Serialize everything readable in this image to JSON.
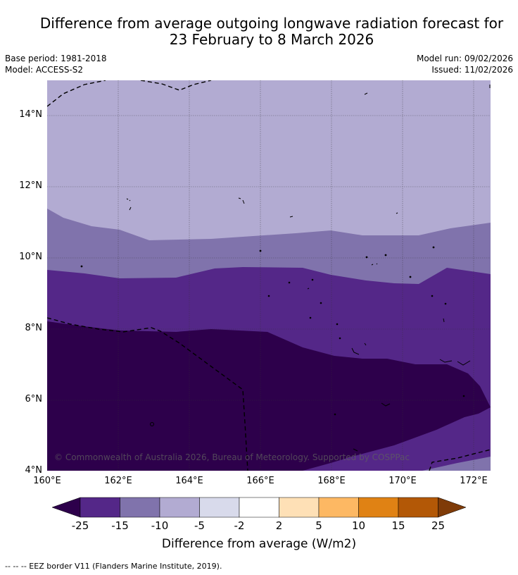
{
  "title_line1": "Difference from average outgoing longwave radiation forecast for",
  "title_line2": "23 February to 8 March 2026",
  "meta": {
    "base_period": "Base period: 1981-2018",
    "model": "Model: ACCESS-S2",
    "model_run": "Model run: 09/02/2026",
    "issued": "Issued: 11/02/2026"
  },
  "map": {
    "lat_labels": [
      "14°N",
      "12°N",
      "10°N",
      "8°N",
      "6°N",
      "4°N"
    ],
    "lon_labels": [
      "160°E",
      "162°E",
      "164°E",
      "166°E",
      "168°E",
      "170°E",
      "172°E"
    ],
    "watermark": "© Commonwealth of Australia 2026, Bureau of Meteorology. Supported by COSPPac"
  },
  "colorbar": {
    "ticks": [
      "-25",
      "-15",
      "-10",
      "-5",
      "-2",
      "2",
      "5",
      "10",
      "15",
      "25"
    ],
    "colors": [
      "#2d004b",
      "#542788",
      "#8073ac",
      "#b2abd2",
      "#d8daeb",
      "#ffffff",
      "#fee0b6",
      "#fdb863",
      "#e08214",
      "#b35806",
      "#7f3b08"
    ],
    "title": "Difference from average (W/m2)"
  },
  "legend_note": "--  --  -- EEZ border V11 (Flanders Marine Institute, 2019)."
}
